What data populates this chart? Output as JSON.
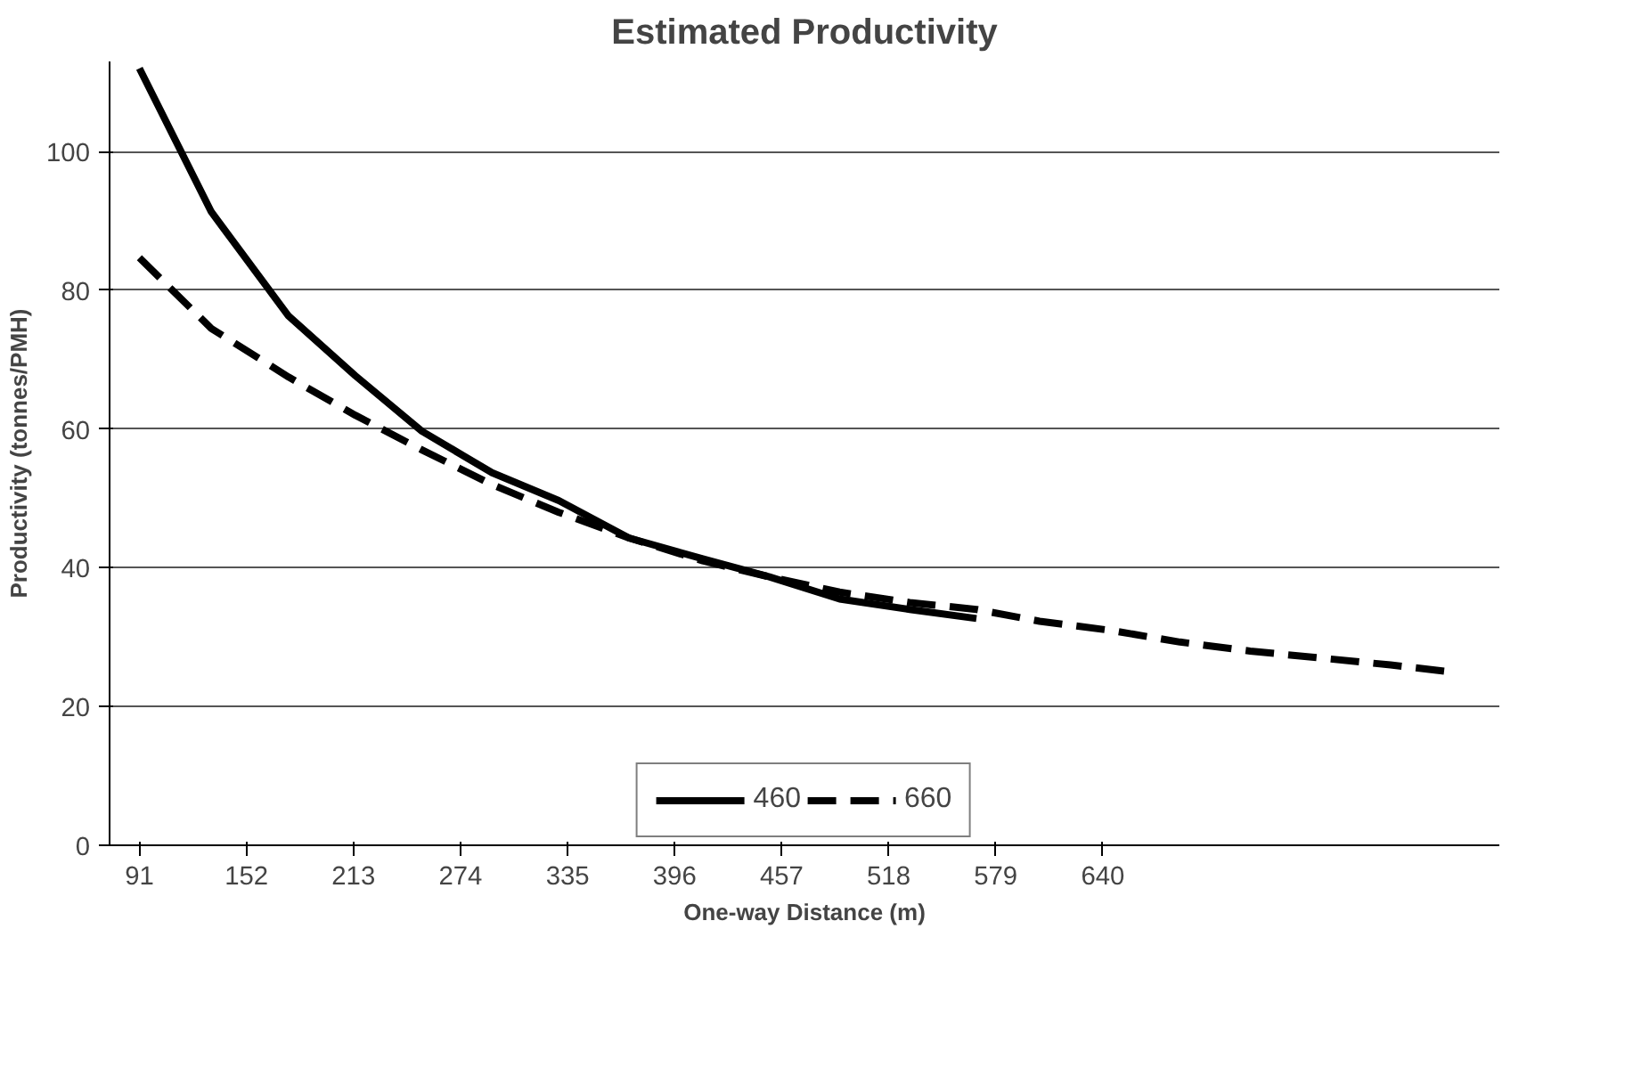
{
  "chart_data": {
    "type": "line",
    "title": "Estimated Productivity",
    "xlabel": "One-way Distance (m)",
    "ylabel": "Productivity (tonnes/PMH)",
    "xlim": [
      74,
      866
    ],
    "ylim": [
      0,
      113
    ],
    "xticks": [
      91,
      152,
      213,
      274,
      335,
      396,
      457,
      518,
      579,
      640
    ],
    "yticks": [
      0,
      20,
      40,
      60,
      80,
      100
    ],
    "grid": "y",
    "legend": "bottom",
    "series": [
      {
        "name": "460",
        "color": "#000000",
        "line_style": "solid",
        "x": [
          91,
          132,
          176,
          214,
          252,
          292,
          330,
          370,
          412,
          450,
          490,
          530,
          568
        ],
        "values": [
          112,
          91.3,
          76.3,
          67.7,
          59.7,
          53.7,
          49.7,
          44.3,
          41.3,
          38.7,
          35.5,
          34,
          32.7
        ]
      },
      {
        "name": "660",
        "color": "#000000",
        "line_style": "dashed",
        "x": [
          91,
          132,
          176,
          214,
          252,
          292,
          330,
          370,
          412,
          450,
          490,
          530,
          568,
          604,
          644,
          684,
          724,
          764,
          804,
          838
        ],
        "values": [
          84.7,
          74.5,
          67.5,
          62,
          57,
          52,
          48,
          44.3,
          41,
          38.7,
          36.5,
          35,
          34,
          32.3,
          31,
          29.3,
          28,
          27,
          26,
          25
        ]
      }
    ]
  }
}
